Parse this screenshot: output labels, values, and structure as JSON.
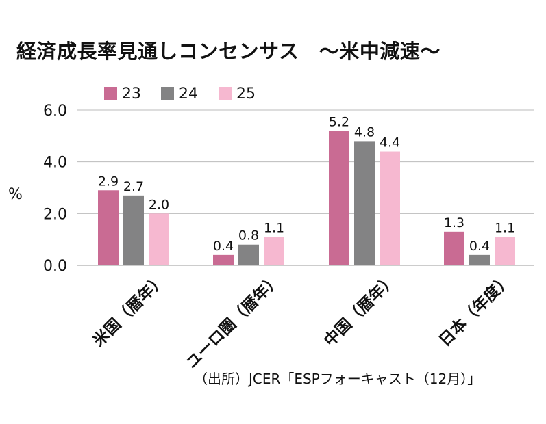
{
  "title": "経済成長率見通しコンセンサス　～米中減速～",
  "source": "（出所）JCER「ESPフォーキャスト（12月）」",
  "colors": {
    "23": "#c96b93",
    "24": "#838384",
    "25": "#f6b8d0",
    "grid": "#bbbbbb"
  },
  "chart_data": {
    "type": "bar",
    "title": "経済成長率見通しコンセンサス　～米中減速～",
    "ylabel": "%",
    "ylim": [
      0,
      6
    ],
    "yticks": [
      "0.0",
      "2.0",
      "4.0",
      "6.0"
    ],
    "grid": true,
    "legend_position": "top-left",
    "categories": [
      "米国（暦年）",
      "ユーロ圏（暦年）",
      "中国（暦年）",
      "日本（年度）"
    ],
    "series": [
      {
        "name": "23",
        "values": [
          2.9,
          0.4,
          5.2,
          1.3
        ],
        "labels": [
          "2.9",
          "0.4",
          "5.2",
          "1.3"
        ]
      },
      {
        "name": "24",
        "values": [
          2.7,
          0.8,
          4.8,
          0.4
        ],
        "labels": [
          "2.7",
          "0.8",
          "4.8",
          "0.4"
        ]
      },
      {
        "name": "25",
        "values": [
          2.0,
          1.1,
          4.4,
          1.1
        ],
        "labels": [
          "2.0",
          "1.1",
          "4.4",
          "1.1"
        ]
      }
    ]
  }
}
